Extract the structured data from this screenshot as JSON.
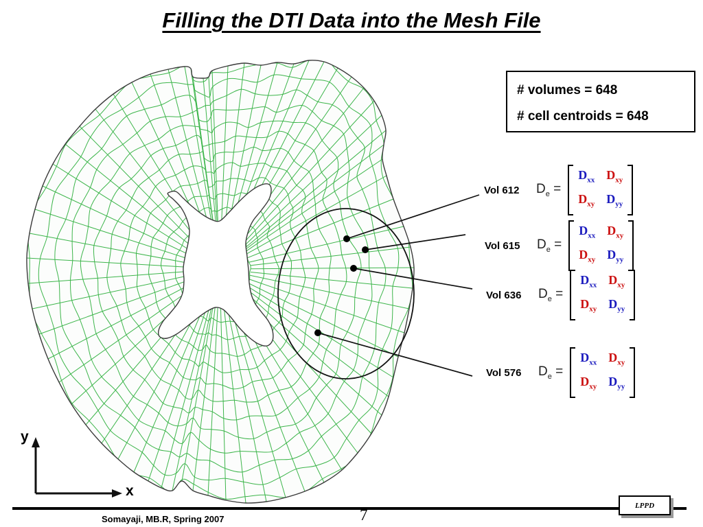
{
  "title": "Filling the DTI Data into the Mesh File",
  "info_box": {
    "volumes_line": "# volumes = 648",
    "centroids_line": "# cell centroids = 648"
  },
  "annotations": [
    {
      "label": "Vol 612",
      "tensor": {
        "symbol": "D",
        "subscript": "e",
        "equals": "=",
        "matrix": {
          "e11": {
            "base": "D",
            "sub": "xx"
          },
          "e12": {
            "base": "D",
            "sub": "xy"
          },
          "e21": {
            "base": "D",
            "sub": "xy"
          },
          "e22": {
            "base": "D",
            "sub": "yy"
          }
        }
      }
    },
    {
      "label": "Vol 615",
      "tensor": {
        "symbol": "D",
        "subscript": "e",
        "equals": "=",
        "matrix": {
          "e11": {
            "base": "D",
            "sub": "xx"
          },
          "e12": {
            "base": "D",
            "sub": "xy"
          },
          "e21": {
            "base": "D",
            "sub": "xy"
          },
          "e22": {
            "base": "D",
            "sub": "yy"
          }
        }
      }
    },
    {
      "label": "Vol 636",
      "tensor": {
        "symbol": "D",
        "subscript": "e",
        "equals": "=",
        "matrix": {
          "e11": {
            "base": "D",
            "sub": "xx"
          },
          "e12": {
            "base": "D",
            "sub": "xy"
          },
          "e21": {
            "base": "D",
            "sub": "xy"
          },
          "e22": {
            "base": "D",
            "sub": "yy"
          }
        }
      }
    },
    {
      "label": "Vol 576",
      "tensor": {
        "symbol": "D",
        "subscript": "e",
        "equals": "=",
        "matrix": {
          "e11": {
            "base": "D",
            "sub": "xx"
          },
          "e12": {
            "base": "D",
            "sub": "xy"
          },
          "e21": {
            "base": "D",
            "sub": "xy"
          },
          "e22": {
            "base": "D",
            "sub": "yy"
          }
        }
      }
    }
  ],
  "axes": {
    "x_label": "x",
    "y_label": "y"
  },
  "footer": {
    "credit": "Somayaji, MB.R, Spring 2007",
    "page_number": "7",
    "logo_text": "LPPD"
  },
  "colors": {
    "mesh_green": "#3cb54a",
    "matrix_blue": "#1a1abe",
    "matrix_red": "#cc1111",
    "outline_dark": "#3a3a3a"
  }
}
